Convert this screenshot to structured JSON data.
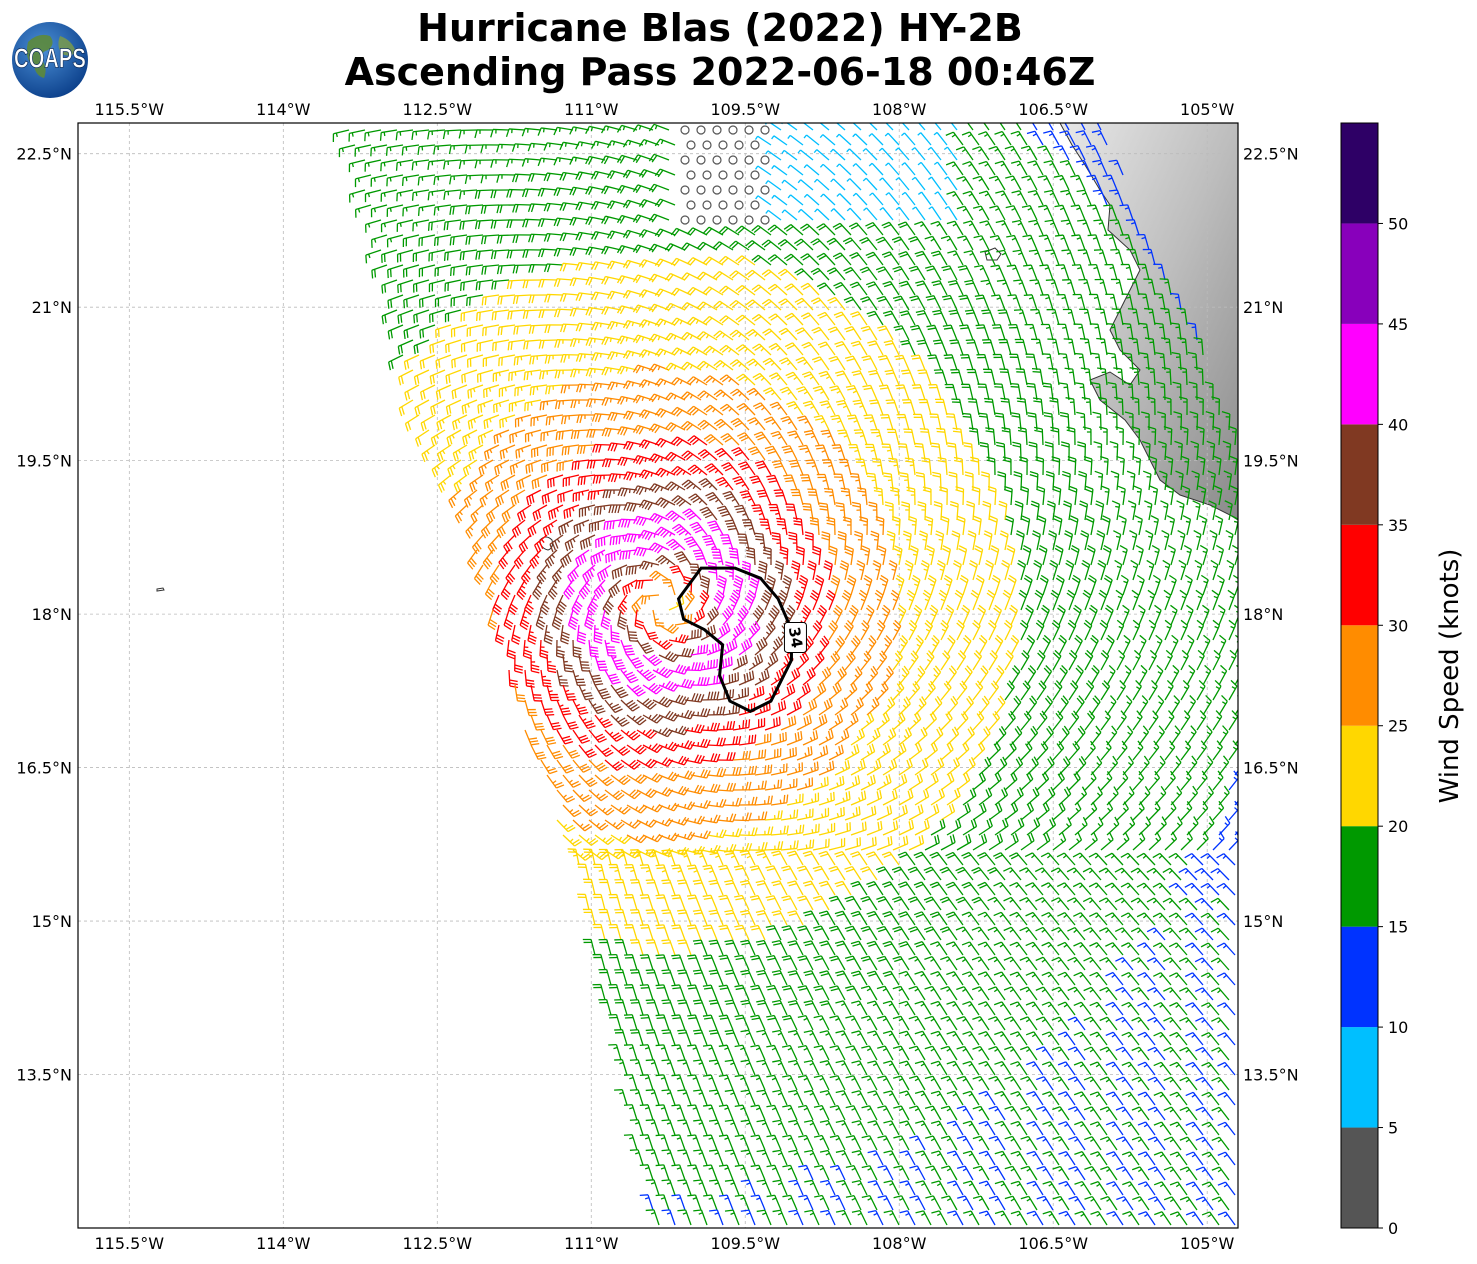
{
  "header": {
    "title_line1": "Hurricane Blas (2022) HY-2B",
    "title_line2": "Ascending Pass 2022-06-18 00:46Z",
    "logo_text": "COAPS"
  },
  "map": {
    "lon_range": [
      -116.0,
      -104.7
    ],
    "lat_range": [
      12.0,
      22.8
    ],
    "lon_ticks": [
      {
        "value": -115.5,
        "label": "115.5°W"
      },
      {
        "value": -114.0,
        "label": "114°W"
      },
      {
        "value": -112.5,
        "label": "112.5°W"
      },
      {
        "value": -111.0,
        "label": "111°W"
      },
      {
        "value": -109.5,
        "label": "109.5°W"
      },
      {
        "value": -108.0,
        "label": "108°W"
      },
      {
        "value": -106.5,
        "label": "106.5°W"
      },
      {
        "value": -105.0,
        "label": "105°W"
      }
    ],
    "lat_ticks": [
      {
        "value": 22.5,
        "label": "22.5°N"
      },
      {
        "value": 21.0,
        "label": "21°N"
      },
      {
        "value": 19.5,
        "label": "19.5°N"
      },
      {
        "value": 18.0,
        "label": "18°N"
      },
      {
        "value": 16.5,
        "label": "16.5°N"
      },
      {
        "value": 15.0,
        "label": "15°N"
      },
      {
        "value": 13.5,
        "label": "13.5°N"
      }
    ],
    "grid": true,
    "storm_center": {
      "lon": -110.3,
      "lat": 18.1
    },
    "contour": {
      "label": "34",
      "units": "knots",
      "points": [
        [
          -109.93,
          18.45
        ],
        [
          -109.6,
          18.45
        ],
        [
          -109.35,
          18.35
        ],
        [
          -109.18,
          18.15
        ],
        [
          -109.05,
          17.85
        ],
        [
          -109.05,
          17.55
        ],
        [
          -109.25,
          17.15
        ],
        [
          -109.45,
          17.05
        ],
        [
          -109.65,
          17.15
        ],
        [
          -109.75,
          17.4
        ],
        [
          -109.72,
          17.7
        ],
        [
          -109.9,
          17.85
        ],
        [
          -110.1,
          17.95
        ],
        [
          -110.15,
          18.15
        ]
      ]
    }
  },
  "colorbar": {
    "label": "Wind Speed (knots)",
    "ticks": [
      "0",
      "5",
      "10",
      "15",
      "20",
      "25",
      "30",
      "35",
      "40",
      "45",
      "50"
    ],
    "bins": [
      {
        "from": 0,
        "to": 5,
        "color": "#555555"
      },
      {
        "from": 5,
        "to": 10,
        "color": "#00bfff"
      },
      {
        "from": 10,
        "to": 15,
        "color": "#0033ff"
      },
      {
        "from": 15,
        "to": 20,
        "color": "#009900"
      },
      {
        "from": 20,
        "to": 25,
        "color": "#ffd700"
      },
      {
        "from": 25,
        "to": 30,
        "color": "#ff8c00"
      },
      {
        "from": 30,
        "to": 35,
        "color": "#ff0000"
      },
      {
        "from": 35,
        "to": 40,
        "color": "#803922"
      },
      {
        "from": 40,
        "to": 45,
        "color": "#ff00ff"
      },
      {
        "from": 45,
        "to": 50,
        "color": "#8800bb"
      },
      {
        "from": 50,
        "to": 55,
        "color": "#2e0066"
      }
    ]
  }
}
